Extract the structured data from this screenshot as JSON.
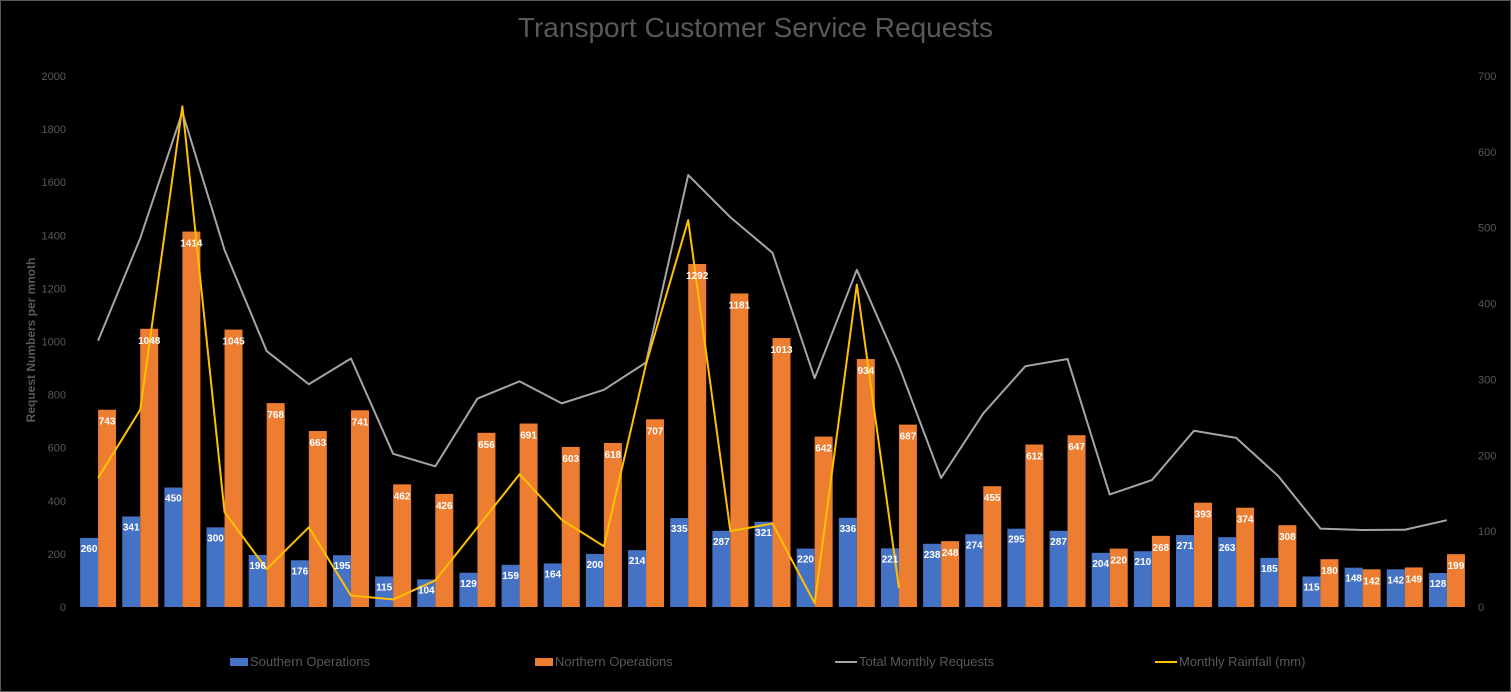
{
  "chart_data": {
    "type": "bar",
    "title": "Transport Customer Service Requests",
    "ylabel": "Request Numbers per mnoth",
    "ylim": [
      0,
      2000
    ],
    "y_ticks": [
      0,
      200,
      400,
      600,
      800,
      1000,
      1200,
      1400,
      1600,
      1800,
      2000
    ],
    "y2lim": [
      0,
      700
    ],
    "y2_ticks": [
      0,
      100,
      200,
      300,
      400,
      500,
      600,
      700
    ],
    "grid": false,
    "legend_position": "bottom",
    "series": [
      {
        "name": "Southern Operations",
        "kind": "bar",
        "axis": "left",
        "color": "#4472C4",
        "values": [
          260,
          341,
          450,
          300,
          196,
          176,
          195,
          115,
          104,
          129,
          159,
          164,
          200,
          214,
          335,
          287,
          321,
          220,
          336,
          221,
          238,
          274,
          295,
          287,
          204,
          210,
          271,
          263,
          185,
          115,
          148,
          142,
          128
        ]
      },
      {
        "name": "Northern Operations",
        "kind": "bar",
        "axis": "left",
        "color": "#ED7D31",
        "values": [
          743,
          1048,
          1414,
          1045,
          768,
          663,
          741,
          462,
          426,
          656,
          691,
          603,
          618,
          707,
          1292,
          1181,
          1013,
          642,
          934,
          687,
          248,
          455,
          612,
          647,
          220,
          268,
          393,
          374,
          308,
          180,
          142,
          149,
          199
        ]
      },
      {
        "name": "Total Monthly Requests",
        "kind": "line",
        "axis": "left",
        "color": "#A5A5A5",
        "values": [
          1003,
          1389,
          1864,
          1345,
          964,
          839,
          936,
          577,
          530,
          785,
          850,
          767,
          818,
          921,
          1627,
          1468,
          1334,
          862,
          1270,
          908,
          486,
          729,
          907,
          934,
          424,
          478,
          664,
          637,
          493,
          295,
          290,
          291,
          327
        ]
      },
      {
        "name": "Monthly Rainfall (mm)",
        "kind": "line",
        "axis": "right",
        "color": "#FFC000",
        "values": [
          170,
          260,
          660,
          125,
          50,
          105,
          15,
          10,
          35,
          105,
          175,
          115,
          80,
          320,
          510,
          100,
          110,
          5,
          425,
          25
        ]
      }
    ]
  }
}
